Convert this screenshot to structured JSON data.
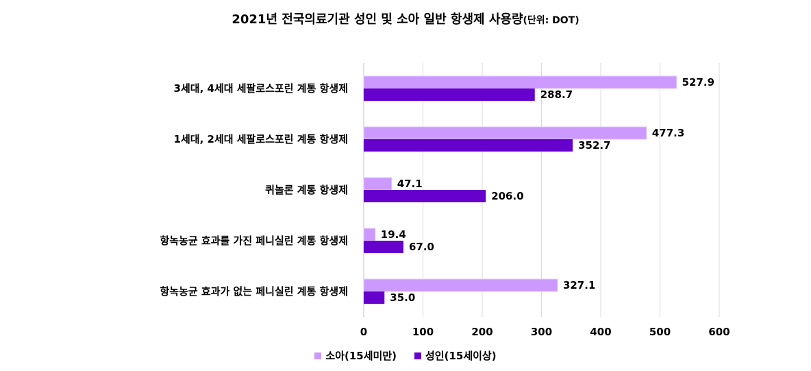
{
  "title": {
    "main": "2021년 전국의료기관 성인 및 소아 일반 항생제 사용량",
    "unit": "(단위: DOT)"
  },
  "chart_data": {
    "type": "bar",
    "orientation": "horizontal",
    "categories": [
      "3세대, 4세대 세팔로스포린 계통 항생제",
      "1세대, 2세대 세팔로스포린 계통 항생제",
      "퀴놀론 계통 항생제",
      "항녹농균 효과를 가진 페니실린 계통 항생제",
      "항녹농균 효과가 없는 페니실린 계통 항생제"
    ],
    "series": [
      {
        "name": "소아(15세미만)",
        "color": "#cc99ff",
        "values": [
          527.9,
          477.3,
          47.1,
          19.4,
          327.1
        ]
      },
      {
        "name": "성인(15세이상)",
        "color": "#6600cc",
        "values": [
          288.7,
          352.7,
          206.0,
          67.0,
          35.0
        ]
      }
    ],
    "value_labels": [
      [
        "527.9",
        "477.3",
        "47.1",
        "19.4",
        "327.1"
      ],
      [
        "288.7",
        "352.7",
        "206.0",
        "67.0",
        "35.0"
      ]
    ],
    "xlim": [
      0,
      600
    ],
    "xticks": [
      "0",
      "100",
      "200",
      "300",
      "400",
      "500",
      "600"
    ],
    "grid": "vertical",
    "legend_position": "bottom"
  }
}
